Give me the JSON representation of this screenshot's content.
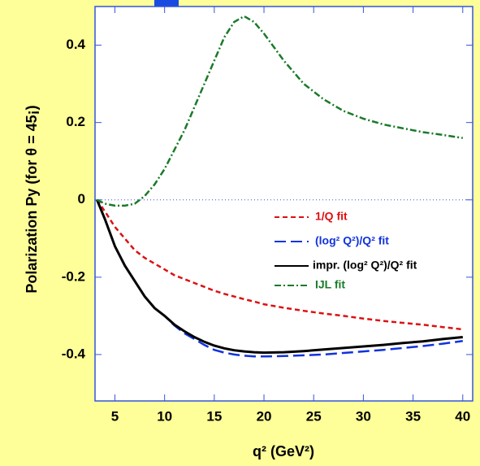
{
  "chart_data": {
    "type": "line",
    "x_label": "q² (GeV²)",
    "y_label": "Polarization  Py  (for θ = 45¡)",
    "xlim": [
      3,
      41
    ],
    "ylim": [
      -0.52,
      0.5
    ],
    "xticks": [
      5,
      10,
      15,
      20,
      25,
      30,
      35,
      40
    ],
    "yticks": [
      -0.4,
      -0.2,
      0,
      0.2,
      0.4
    ],
    "x": [
      3.2,
      4,
      5,
      6,
      7,
      8,
      9,
      10,
      11,
      12,
      13,
      14,
      15,
      16,
      17,
      18,
      19,
      20,
      22,
      24,
      26,
      28,
      30,
      32,
      34,
      36,
      38,
      40
    ],
    "series": [
      {
        "name": "1/Q fit",
        "color": "#dd1111",
        "dash": "6,4",
        "values": [
          0,
          -0.03,
          -0.07,
          -0.1,
          -0.13,
          -0.15,
          -0.165,
          -0.18,
          -0.195,
          -0.205,
          -0.215,
          -0.225,
          -0.235,
          -0.243,
          -0.25,
          -0.257,
          -0.263,
          -0.27,
          -0.279,
          -0.287,
          -0.294,
          -0.3,
          -0.307,
          -0.313,
          -0.318,
          -0.323,
          -0.329,
          -0.335
        ]
      },
      {
        "name": "(log² Q²)/Q² fit",
        "color": "#1133dd",
        "dash": "14,6",
        "values": [
          0,
          -0.05,
          -0.12,
          -0.17,
          -0.21,
          -0.25,
          -0.28,
          -0.3,
          -0.325,
          -0.345,
          -0.36,
          -0.375,
          -0.388,
          -0.395,
          -0.4,
          -0.403,
          -0.405,
          -0.405,
          -0.404,
          -0.402,
          -0.4,
          -0.396,
          -0.392,
          -0.388,
          -0.383,
          -0.378,
          -0.372,
          -0.365
        ]
      },
      {
        "name": "impr. (log² Q²)/Q² fit",
        "color": "#000000",
        "dash": "",
        "values": [
          0,
          -0.05,
          -0.12,
          -0.17,
          -0.21,
          -0.25,
          -0.28,
          -0.3,
          -0.323,
          -0.34,
          -0.355,
          -0.367,
          -0.377,
          -0.384,
          -0.389,
          -0.392,
          -0.394,
          -0.395,
          -0.394,
          -0.391,
          -0.387,
          -0.383,
          -0.379,
          -0.375,
          -0.37,
          -0.366,
          -0.36,
          -0.355
        ]
      },
      {
        "name": "IJL fit",
        "color": "#1a7a2a",
        "dash": "8,3,2,3",
        "values": [
          0,
          -0.01,
          -0.015,
          -0.015,
          -0.01,
          0.01,
          0.04,
          0.08,
          0.13,
          0.18,
          0.24,
          0.3,
          0.36,
          0.42,
          0.46,
          0.475,
          0.46,
          0.43,
          0.36,
          0.3,
          0.26,
          0.23,
          0.21,
          0.195,
          0.185,
          0.175,
          0.168,
          0.16
        ]
      }
    ]
  }
}
